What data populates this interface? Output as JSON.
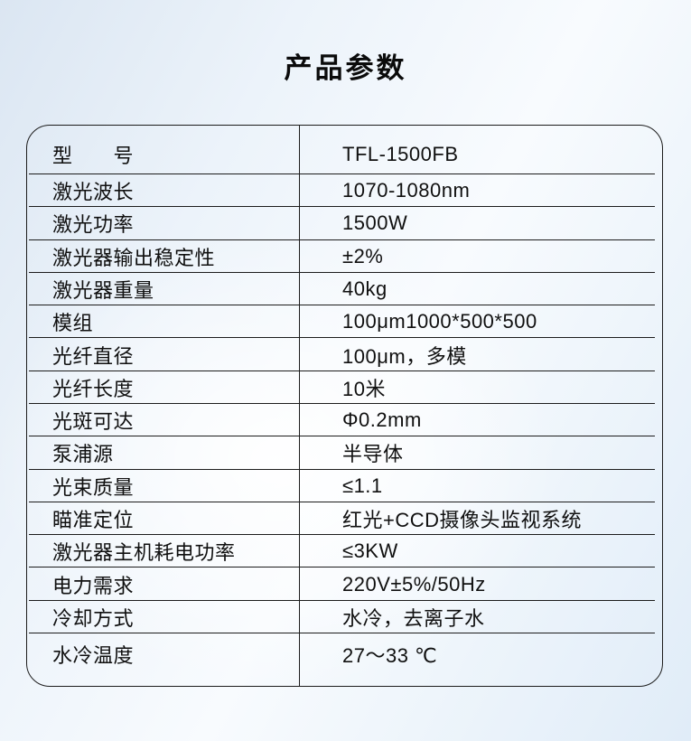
{
  "page": {
    "title": "产品参数"
  },
  "colors": {
    "border": "#1c1c1c",
    "text": "#101010",
    "background_blue": "#dbe6f2",
    "background_white": "#f8fbfe"
  },
  "table": {
    "rows": [
      {
        "label": "型　　号",
        "value": "TFL-1500FB"
      },
      {
        "label": "激光波长",
        "value": "1070-1080nm"
      },
      {
        "label": "激光功率",
        "value": "1500W"
      },
      {
        "label": "激光器输出稳定性",
        "value": "±2%"
      },
      {
        "label": "激光器重量",
        "value": "40kg"
      },
      {
        "label": "模组",
        "value": "100μm1000*500*500"
      },
      {
        "label": "光纤直径",
        "value": "100μm，多模"
      },
      {
        "label": "光纤长度",
        "value": "10米"
      },
      {
        "label": "光斑可达",
        "value": "Φ0.2mm"
      },
      {
        "label": "泵浦源",
        "value": "半导体"
      },
      {
        "label": "光束质量",
        "value": "≤1.1"
      },
      {
        "label": "瞄准定位",
        "value": "红光+CCD摄像头监视系统"
      },
      {
        "label": "激光器主机耗电功率",
        "value": "≤3KW"
      },
      {
        "label": "电力需求",
        "value": "220V±5%/50Hz"
      },
      {
        "label": "冷却方式",
        "value": "水冷，去离子水"
      },
      {
        "label": "水冷温度",
        "value": "27～33 ℃"
      }
    ]
  }
}
